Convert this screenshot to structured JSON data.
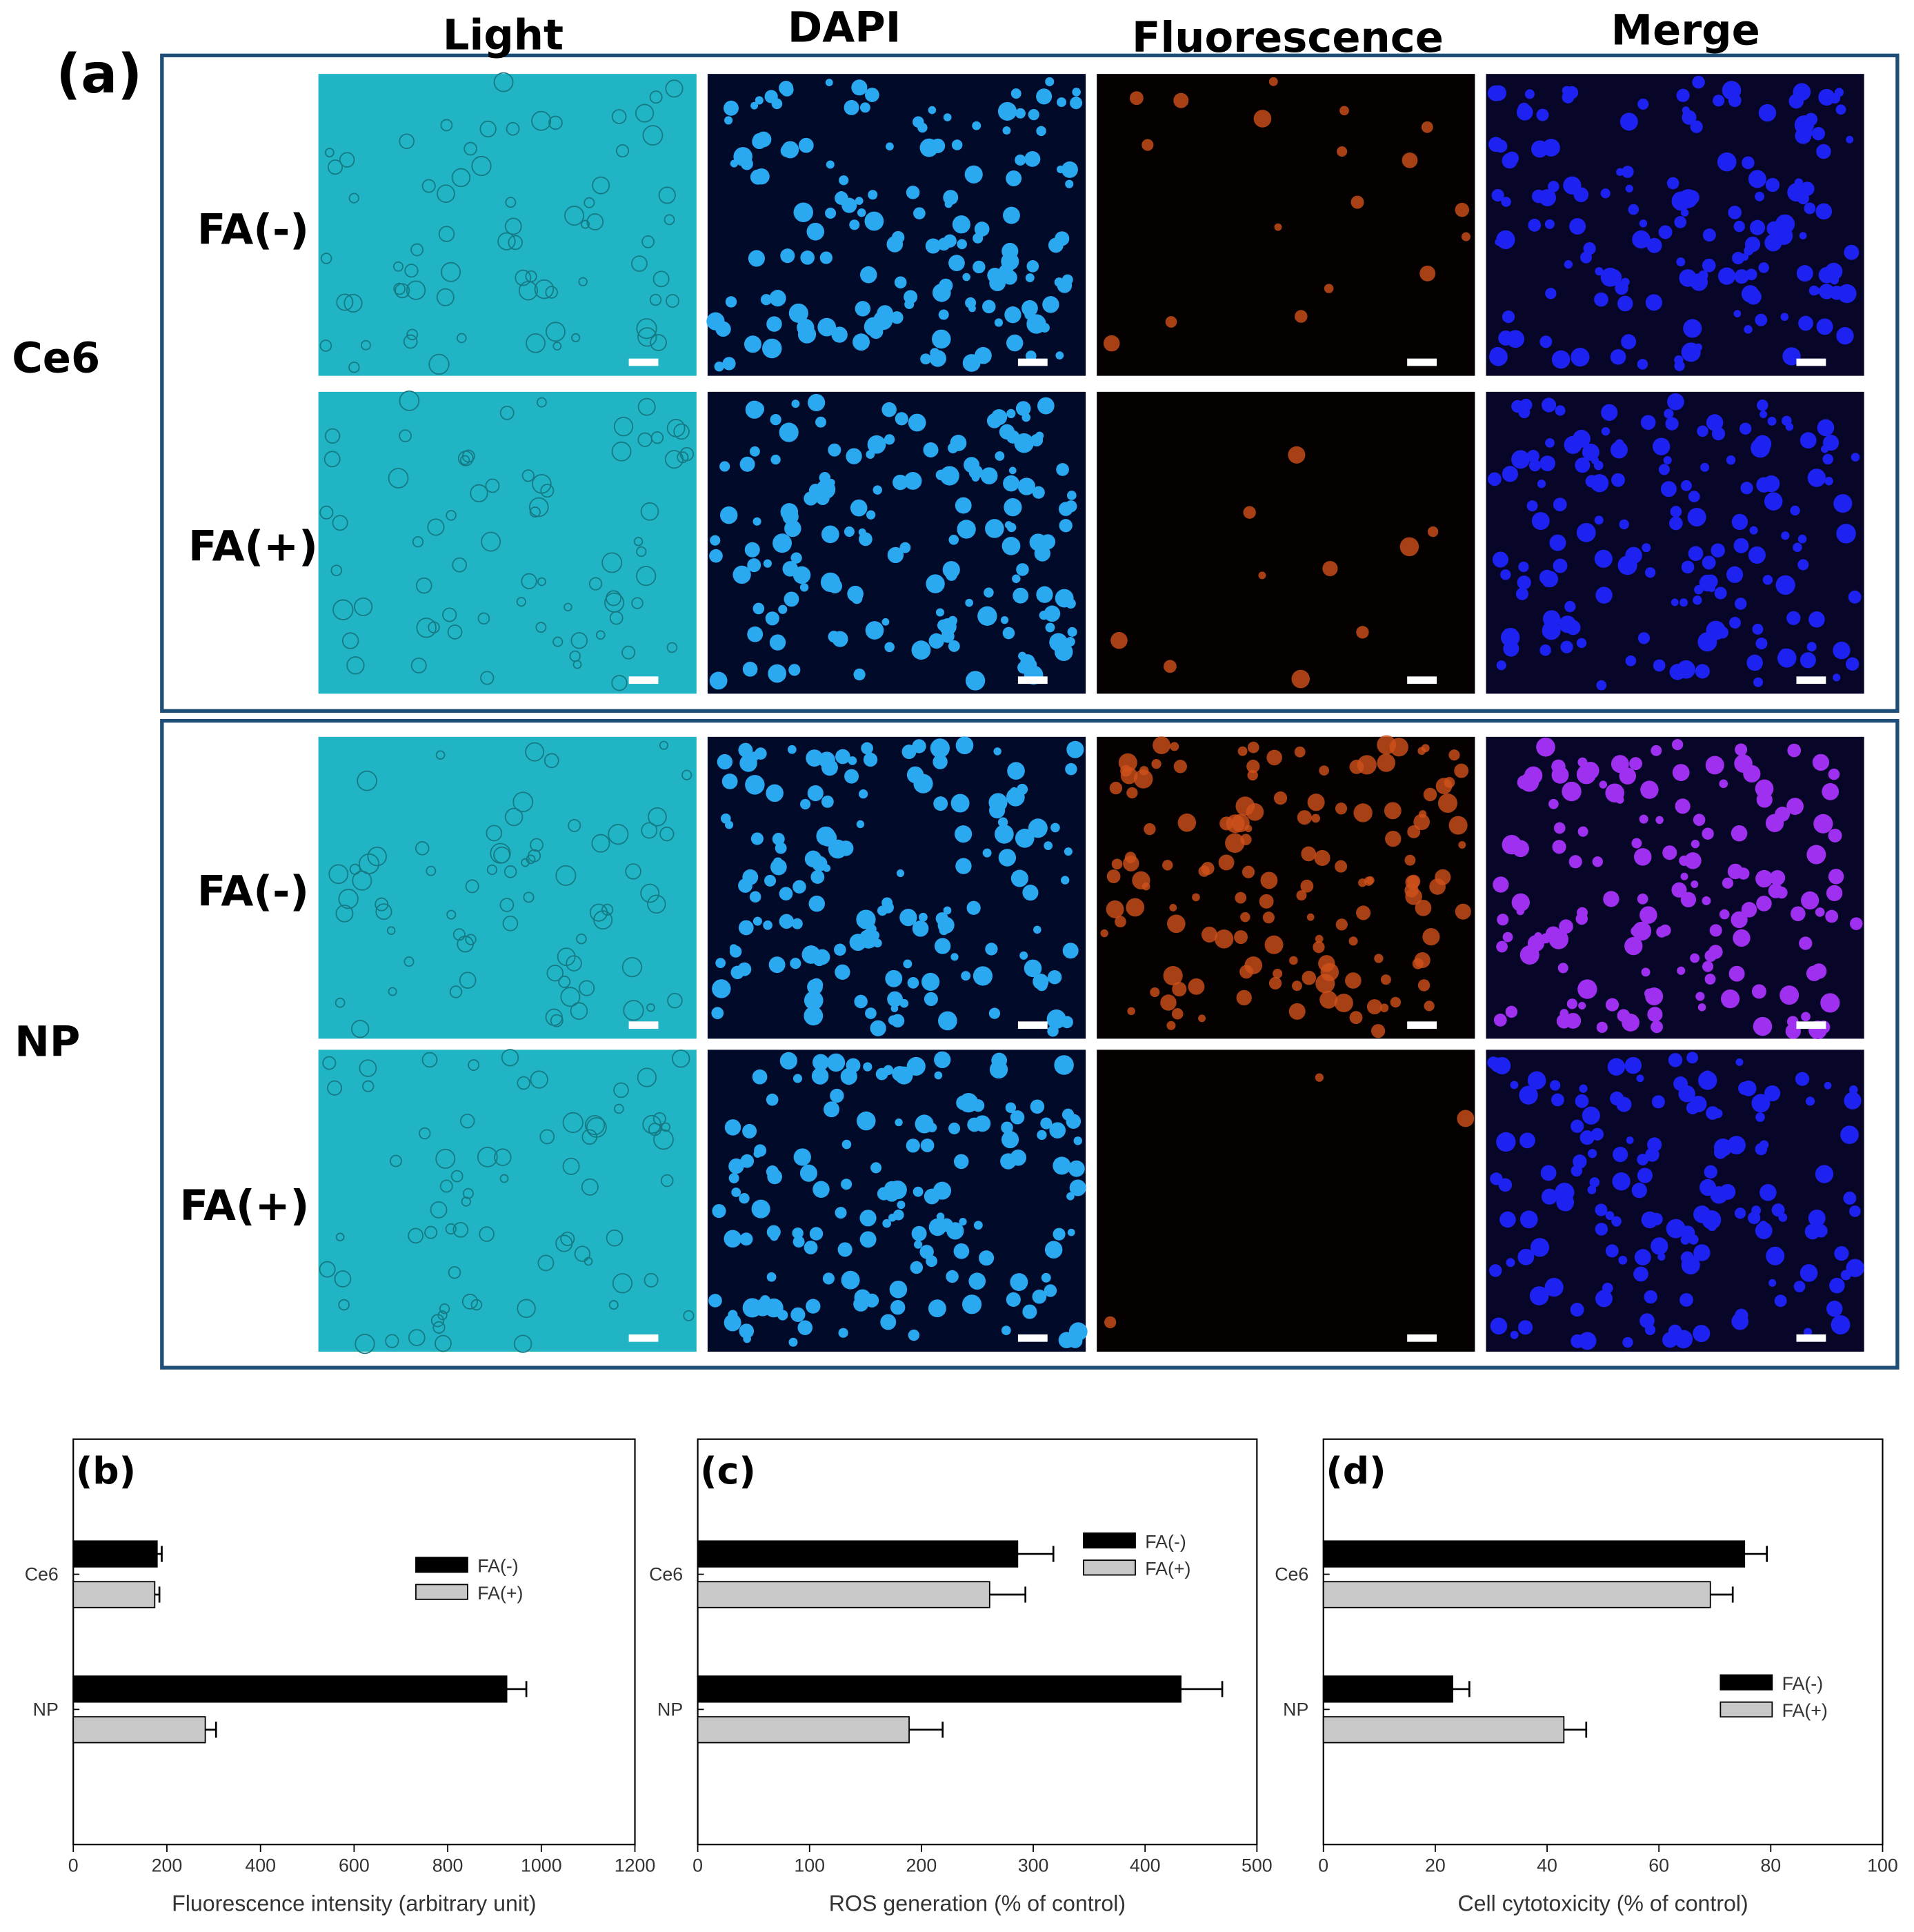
{
  "panel_a": {
    "label": "(a)",
    "columns": [
      "Light",
      "DAPI",
      "Fluorescence",
      "Merge"
    ],
    "groups": [
      {
        "name": "Ce6",
        "rows": [
          "FA(-)",
          "FA(+)"
        ]
      },
      {
        "name": "NP",
        "rows": [
          "FA(-)",
          "FA(+)"
        ]
      }
    ]
  },
  "chart_data": [
    {
      "type": "barh",
      "label": "(b)",
      "xlabel": "Fluorescence intensity (arbitrary unit)",
      "categories": [
        "Ce6",
        "NP"
      ],
      "series": [
        {
          "name": "FA(-)",
          "color": "#000000",
          "values": [
            179,
            926
          ],
          "errors": [
            10,
            42
          ]
        },
        {
          "name": "FA(+)",
          "color": "#c8c8c8",
          "values": [
            174,
            282
          ],
          "errors": [
            10,
            23
          ]
        }
      ],
      "xlim": [
        0,
        1200
      ],
      "xticks": [
        0,
        200,
        400,
        600,
        800,
        1000,
        1200
      ],
      "legend": "right"
    },
    {
      "type": "barh",
      "label": "(c)",
      "xlabel": "ROS generation (% of control)",
      "categories": [
        "Ce6",
        "NP"
      ],
      "series": [
        {
          "name": "FA(-)",
          "color": "#000000",
          "values": [
            286,
            432
          ],
          "errors": [
            32,
            37
          ]
        },
        {
          "name": "FA(+)",
          "color": "#c8c8c8",
          "values": [
            261,
            189
          ],
          "errors": [
            32,
            30
          ]
        }
      ],
      "xlim": [
        0,
        500
      ],
      "xticks": [
        0,
        100,
        200,
        300,
        400,
        500
      ],
      "legend": "upper right"
    },
    {
      "type": "barh",
      "label": "(d)",
      "xlabel": "Cell cytotoxicity (% of control)",
      "categories": [
        "Ce6",
        "NP"
      ],
      "series": [
        {
          "name": "FA(-)",
          "color": "#000000",
          "values": [
            75.3,
            23.1
          ],
          "errors": [
            4,
            3
          ]
        },
        {
          "name": "FA(+)",
          "color": "#c8c8c8",
          "values": [
            69.2,
            43
          ],
          "errors": [
            4,
            4
          ]
        }
      ],
      "xlim": [
        0,
        100
      ],
      "xticks": [
        0,
        20,
        40,
        60,
        80,
        100
      ],
      "legend": "center right"
    }
  ]
}
